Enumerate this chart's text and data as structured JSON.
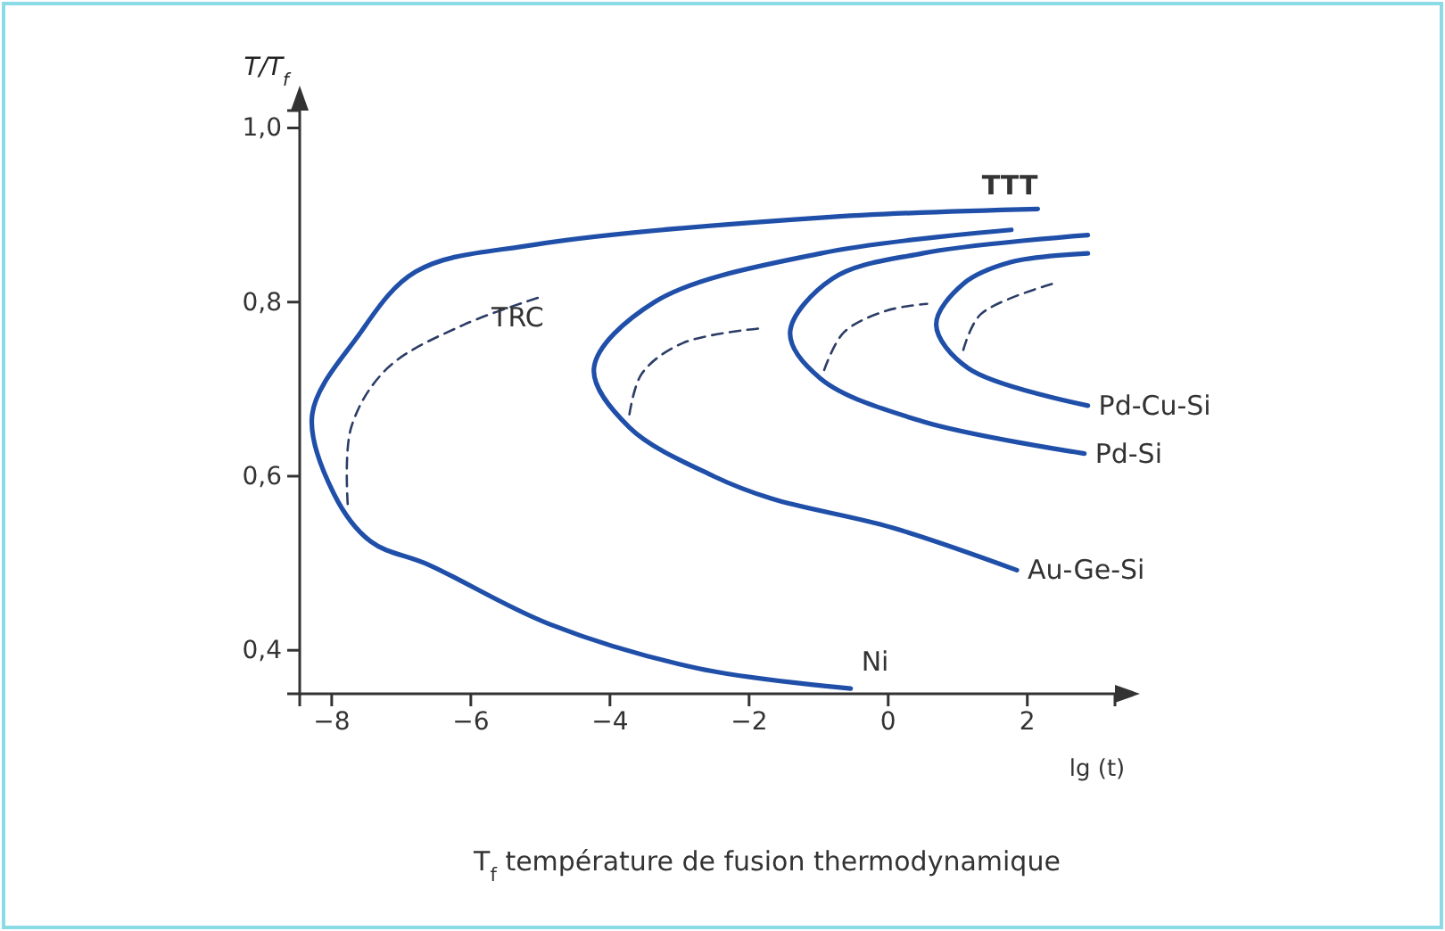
{
  "chart_data": {
    "type": "line",
    "xlabel": "lg (t)",
    "ylabel": "T/T$_{f}$",
    "xlim": [
      -8.46,
      3.26
    ],
    "ylim": [
      0.35,
      1.02
    ],
    "xticks": [
      -8,
      -6,
      -4,
      -2,
      0,
      2
    ],
    "yticks": [
      {
        "value": 0.4,
        "label": "0,4"
      },
      {
        "value": 0.6,
        "label": "0,6"
      },
      {
        "value": 0.8,
        "label": "0,8"
      },
      {
        "value": 1.0,
        "label": "1,0"
      }
    ],
    "grid": false,
    "marker": "none",
    "series": [
      {
        "name": "Ni",
        "color": "#1f4fa8",
        "line_style": "solid",
        "x": [
          2.15,
          -0.97,
          -5.08,
          -6.79,
          -7.64,
          -8.28,
          -7.97,
          -7.44,
          -6.6,
          -4.87,
          -2.72,
          -0.54
        ],
        "values": [
          0.907,
          0.897,
          0.866,
          0.835,
          0.759,
          0.671,
          0.58,
          0.525,
          0.498,
          0.43,
          0.379,
          0.356
        ]
      },
      {
        "color": "#2b3c66",
        "line_style": "dashed",
        "x": [
          -7.77,
          -7.72,
          -7.2,
          -6.1,
          -4.95
        ],
        "values": [
          0.568,
          0.656,
          0.724,
          0.774,
          0.807
        ]
      },
      {
        "name": "Au-Ge-Si",
        "color": "#1f4fa8",
        "line_style": "solid",
        "x": [
          1.77,
          -0.97,
          -3.36,
          -4.23,
          -3.72,
          -2.51,
          -1.67,
          0.05,
          1.85
        ],
        "values": [
          0.883,
          0.856,
          0.8,
          0.724,
          0.656,
          0.6,
          0.574,
          0.541,
          0.492
        ]
      },
      {
        "color": "#2b3c66",
        "line_style": "dashed",
        "x": [
          -3.72,
          -3.54,
          -2.95,
          -1.82
        ],
        "values": [
          0.671,
          0.718,
          0.753,
          0.77
        ]
      },
      {
        "name": "Pd-Si",
        "color": "#1f4fa8",
        "line_style": "solid",
        "x": [
          2.87,
          0.49,
          -0.8,
          -1.41,
          -0.97,
          0.49,
          2.82
        ],
        "values": [
          0.877,
          0.856,
          0.827,
          0.765,
          0.712,
          0.663,
          0.626
        ]
      },
      {
        "color": "#2b3c66",
        "line_style": "dashed",
        "x": [
          -0.92,
          -0.64,
          -0.03,
          0.56
        ],
        "values": [
          0.722,
          0.765,
          0.79,
          0.798
        ]
      },
      {
        "name": "Pd-Cu-Si",
        "color": "#1f4fa8",
        "line_style": "solid",
        "x": [
          2.87,
          1.77,
          1.08,
          0.69,
          1.15,
          2.87
        ],
        "values": [
          0.856,
          0.846,
          0.821,
          0.774,
          0.724,
          0.681
        ]
      },
      {
        "color": "#2b3c66",
        "line_style": "dashed",
        "x": [
          1.08,
          1.33,
          2.36
        ],
        "values": [
          0.745,
          0.786,
          0.821
        ]
      }
    ],
    "annotations": [
      {
        "text": "TTT",
        "x": 2.15,
        "y": 0.907
      },
      {
        "text": "TRC",
        "x": -4.95,
        "y": 0.807
      },
      "T$_{f}$ température de fusion thermodynamique"
    ]
  }
}
